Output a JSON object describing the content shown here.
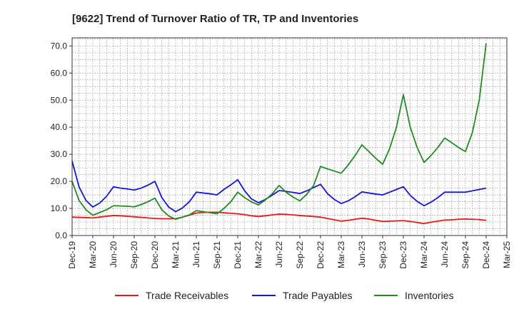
{
  "chart_data": {
    "type": "line",
    "title": "[9622]  Trend of Turnover Ratio of TR, TP and Inventories",
    "xlabel": "",
    "ylabel": "",
    "ylim": [
      0,
      73
    ],
    "yticks": [
      0,
      10,
      20,
      30,
      40,
      50,
      60,
      70
    ],
    "ytick_labels": [
      "0.0",
      "10.0",
      "20.0",
      "30.0",
      "40.0",
      "50.0",
      "60.0",
      "70.0"
    ],
    "xtick_labels": [
      "Dec-19",
      "Mar-20",
      "Jun-20",
      "Sep-20",
      "Dec-20",
      "Mar-21",
      "Jun-21",
      "Sep-21",
      "Dec-21",
      "Mar-22",
      "Jun-22",
      "Sep-22",
      "Dec-22",
      "Mar-23",
      "Jun-23",
      "Sep-23",
      "Dec-23",
      "Mar-24",
      "Jun-24",
      "Sep-24",
      "Dec-24",
      "Mar-25"
    ],
    "x": [
      "Dec-19",
      "Jan-20",
      "Feb-20",
      "Mar-20",
      "Apr-20",
      "May-20",
      "Jun-20",
      "Jul-20",
      "Aug-20",
      "Sep-20",
      "Oct-20",
      "Nov-20",
      "Dec-20",
      "Jan-21",
      "Feb-21",
      "Mar-21",
      "Apr-21",
      "May-21",
      "Jun-21",
      "Jul-21",
      "Aug-21",
      "Sep-21",
      "Oct-21",
      "Nov-21",
      "Dec-21",
      "Jan-22",
      "Feb-22",
      "Mar-22",
      "Apr-22",
      "May-22",
      "Jun-22",
      "Jul-22",
      "Aug-22",
      "Sep-22",
      "Oct-22",
      "Nov-22",
      "Dec-22",
      "Jan-23",
      "Feb-23",
      "Mar-23",
      "Apr-23",
      "May-23",
      "Jun-23",
      "Jul-23",
      "Aug-23",
      "Sep-23",
      "Oct-23",
      "Nov-23",
      "Dec-23",
      "Jan-24",
      "Feb-24",
      "Mar-24",
      "Apr-24",
      "May-24",
      "Jun-24",
      "Jul-24",
      "Aug-24",
      "Sep-24",
      "Oct-24",
      "Nov-24",
      "Dec-24"
    ],
    "grid": true,
    "legend_position": "bottom",
    "series": [
      {
        "name": "Trade Receivables",
        "color": "#e8191a",
        "values": [
          6.8,
          6.7,
          6.6,
          6.5,
          6.8,
          7.1,
          7.4,
          7.3,
          7.1,
          6.9,
          6.7,
          6.5,
          6.3,
          6.2,
          6.2,
          6.2,
          6.8,
          7.5,
          8.3,
          8.5,
          8.6,
          8.6,
          8.4,
          8.2,
          8.0,
          7.7,
          7.3,
          7.0,
          7.3,
          7.6,
          7.9,
          7.8,
          7.6,
          7.4,
          7.2,
          7.0,
          6.8,
          6.3,
          5.8,
          5.3,
          5.6,
          6.0,
          6.4,
          6.1,
          5.6,
          5.2,
          5.3,
          5.4,
          5.5,
          5.2,
          4.8,
          4.4,
          4.9,
          5.3,
          5.7,
          5.8,
          6.0,
          6.1,
          6.0,
          5.9,
          5.6
        ]
      },
      {
        "name": "Trade Payables",
        "color": "#1616d4",
        "values": [
          27.5,
          18.0,
          13.0,
          10.5,
          12.0,
          14.5,
          18.0,
          17.5,
          17.2,
          16.8,
          17.5,
          18.6,
          20.0,
          14.0,
          10.5,
          8.8,
          10.2,
          12.5,
          16.0,
          15.7,
          15.4,
          15.0,
          17.0,
          18.7,
          20.6,
          16.5,
          13.5,
          12.1,
          13.3,
          14.9,
          16.6,
          16.3,
          15.9,
          15.5,
          16.5,
          17.7,
          18.9,
          15.5,
          13.3,
          11.8,
          12.8,
          14.3,
          16.1,
          15.7,
          15.3,
          15.0,
          16.0,
          17.0,
          18.0,
          14.8,
          12.6,
          11.0,
          12.3,
          14.0,
          16.0,
          16.0,
          16.0,
          16.0,
          16.5,
          17.0,
          17.5
        ]
      },
      {
        "name": "Inventories",
        "color": "#228b22",
        "values": [
          20.0,
          13.0,
          9.5,
          7.5,
          8.5,
          9.5,
          11.0,
          10.9,
          10.8,
          10.6,
          11.4,
          12.5,
          13.8,
          9.5,
          7.2,
          6.0,
          6.8,
          7.6,
          9.2,
          8.8,
          8.4,
          8.0,
          10.0,
          12.5,
          16.0,
          14.0,
          12.4,
          11.3,
          13.1,
          15.4,
          18.5,
          16.0,
          14.2,
          12.8,
          15.2,
          18.5,
          25.5,
          24.6,
          23.8,
          23.0,
          26.0,
          29.5,
          33.5,
          31.0,
          28.5,
          26.3,
          32.0,
          40.0,
          52.0,
          40.0,
          32.5,
          27.0,
          29.5,
          32.5,
          36.0,
          34.3,
          32.5,
          31.0,
          38.0,
          50.0,
          71.0
        ]
      }
    ]
  }
}
